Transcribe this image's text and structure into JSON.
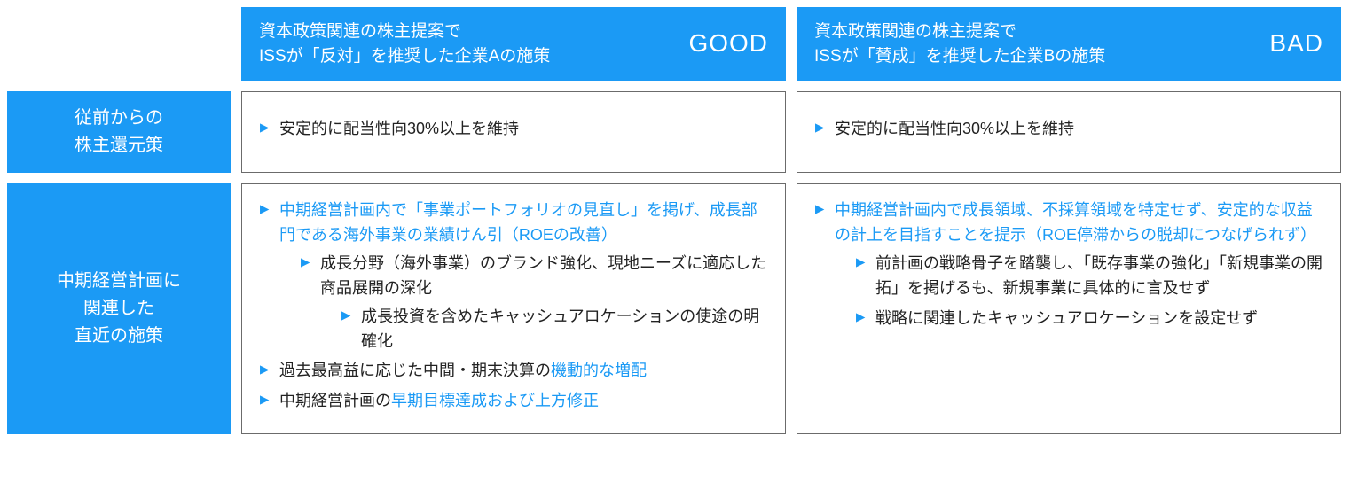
{
  "colors": {
    "brand": "#1b9af5",
    "border": "#6b6b6b",
    "text": "#222222",
    "bg": "#ffffff"
  },
  "headers": {
    "good": {
      "title": "資本政策関連の株主提案で\nISSが「反対」を推奨した企業Aの施策",
      "badge": "GOOD"
    },
    "bad": {
      "title": "資本政策関連の株主提案で\nISSが「賛成」を推奨した企業Bの施策",
      "badge": "BAD"
    }
  },
  "rowLabels": {
    "r1": "従前からの\n株主還元策",
    "r2": "中期経営計画に\n関連した\n直近の施策"
  },
  "cells": {
    "r1_good": {
      "items": [
        {
          "text": "安定的に配当性向30%以上を維持"
        }
      ]
    },
    "r1_bad": {
      "items": [
        {
          "text": "安定的に配当性向30%以上を維持"
        }
      ]
    },
    "r2_good": {
      "b1": "中期経営計画内で「事業ポートフォリオの見直し」を掲げ、成長部門である海外事業の業績けん引（ROEの改善）",
      "b1_1": "成長分野（海外事業）のブランド強化、現地ニーズに適応した商品展開の深化",
      "b1_1_1": "成長投資を含めたキャッシュアロケーションの使途の明確化",
      "b2_a": "過去最高益に応じた中間・期末決算の",
      "b2_b": "機動的な増配",
      "b3_a": "中期経営計画の",
      "b3_b": "早期目標達成および上方修正"
    },
    "r2_bad": {
      "b1": "中期経営計画内で成長領域、不採算領域を特定せず、安定的な収益の計上を目指すことを提示（ROE停滞からの脱却につなげられず）",
      "b1_1": "前計画の戦略骨子を踏襲し、「既存事業の強化」「新規事業の開拓」を掲げるも、新規事業に具体的に言及せず",
      "b1_2": "戦略に関連したキャッシュアロケーションを設定せず"
    }
  }
}
